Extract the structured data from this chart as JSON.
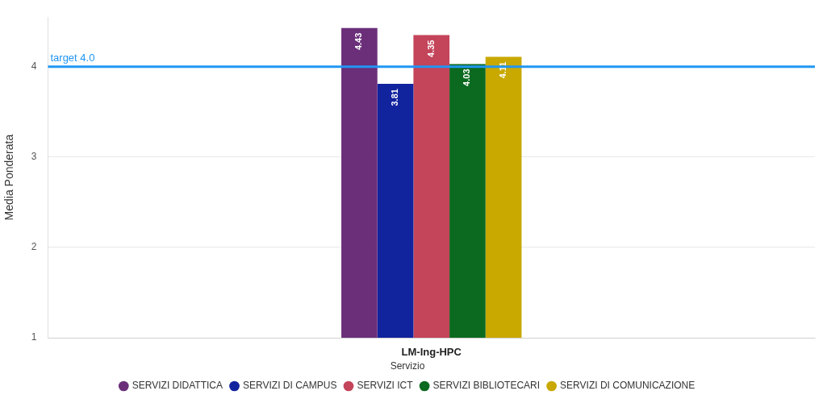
{
  "chart_data": {
    "type": "bar",
    "ylabel": "Media Ponderata",
    "legend_title": "Servizio",
    "categories": [
      "LM-Ing-HPC"
    ],
    "series": [
      {
        "name": "SERVIZI DIDATTICA",
        "color": "#6b2f7a",
        "values": [
          4.43
        ]
      },
      {
        "name": "SERVIZI DI CAMPUS",
        "color": "#12239e",
        "values": [
          3.81
        ]
      },
      {
        "name": "SERVIZI ICT",
        "color": "#c4445a",
        "values": [
          4.35
        ]
      },
      {
        "name": "SERVIZI BIBLIOTECARI",
        "color": "#0b6a1f",
        "values": [
          4.03
        ]
      },
      {
        "name": "SERVIZI DI COMUNICAZIONE",
        "color": "#c9a800",
        "values": [
          4.11
        ]
      }
    ],
    "ylim": [
      1,
      4.55
    ],
    "yticks": [
      1,
      2,
      3,
      4
    ],
    "grid": "y",
    "legend": "bottom",
    "data_labels": true,
    "ref_lines": [
      {
        "axis": "y",
        "value": 4,
        "label": "target 4.0",
        "color": "#2196f3"
      }
    ]
  }
}
